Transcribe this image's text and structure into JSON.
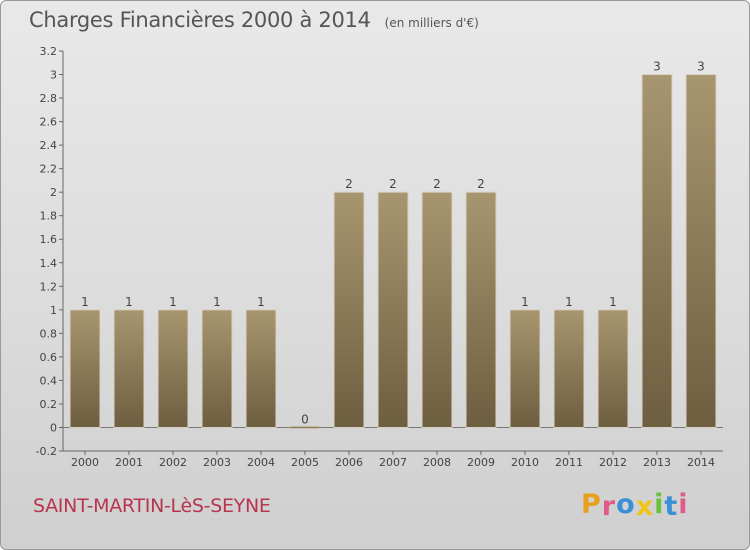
{
  "title": "Charges Financières 2000 à 2014",
  "unit": "(en milliers d'€)",
  "commune": "SAINT-MARTIN-LèS-SEYNE",
  "brand": {
    "text": "Proxiti",
    "letters": [
      "P",
      "r",
      "o",
      "x",
      "i",
      "t",
      "i"
    ],
    "colors": [
      "#e8a01e",
      "#e05a8a",
      "#3a8fd6",
      "#f0c419",
      "#6bbf3a",
      "#3a8fd6",
      "#e05a8a"
    ]
  },
  "chart_data": {
    "type": "bar",
    "categories": [
      "2000",
      "2001",
      "2002",
      "2003",
      "2004",
      "2005",
      "2006",
      "2007",
      "2008",
      "2009",
      "2010",
      "2011",
      "2012",
      "2013",
      "2014"
    ],
    "values": [
      1,
      1,
      1,
      1,
      1,
      0,
      2,
      2,
      2,
      2,
      1,
      1,
      1,
      3,
      3
    ],
    "data_labels": [
      "1",
      "1",
      "1",
      "1",
      "1",
      "0",
      "2",
      "2",
      "2",
      "2",
      "1",
      "1",
      "1",
      "3",
      "3"
    ],
    "y_ticks": [
      "-0.2",
      "0",
      "0.2",
      "0.4",
      "0.6",
      "0.8",
      "1",
      "1.2",
      "1.4",
      "1.6",
      "1.8",
      "2",
      "2.2",
      "2.4",
      "2.6",
      "2.8",
      "3",
      "3.2"
    ],
    "ylim": [
      -0.2,
      3.2
    ],
    "grid": false,
    "bar_color": "#8f7d5c",
    "bar_color_light": "#a7966f",
    "bar_color_dark": "#6e5e40"
  }
}
